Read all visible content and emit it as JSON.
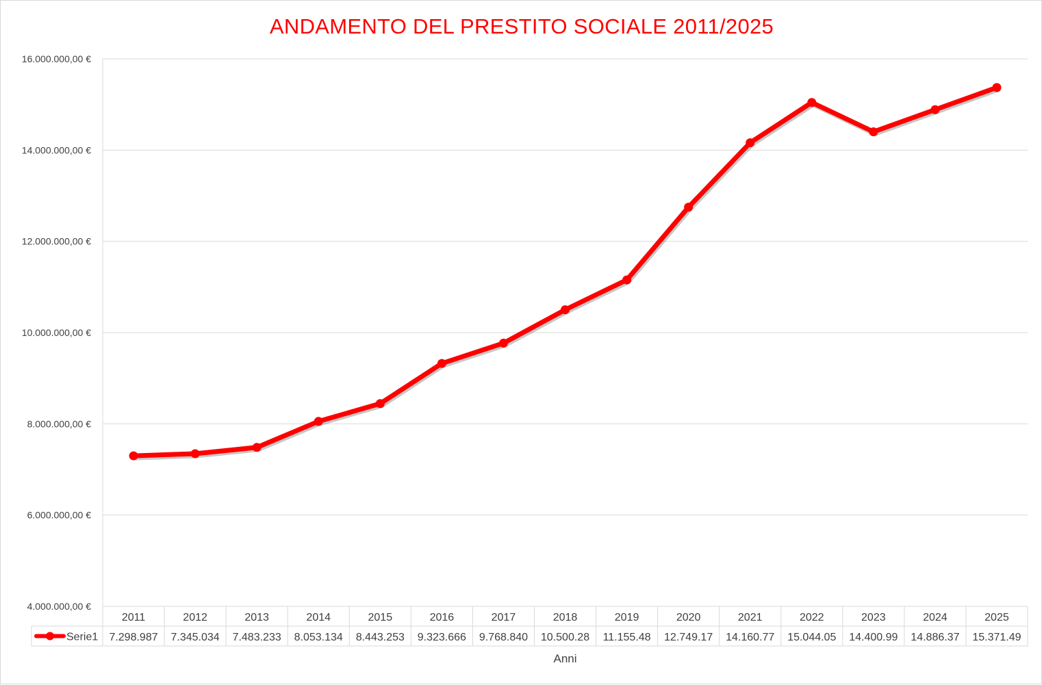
{
  "chart_data": {
    "type": "line",
    "title": "ANDAMENTO DEL PRESTITO SOCIALE 2011/2025",
    "xlabel": "Anni",
    "ylabel": "",
    "categories": [
      "2011",
      "2012",
      "2013",
      "2014",
      "2015",
      "2016",
      "2017",
      "2018",
      "2019",
      "2020",
      "2021",
      "2022",
      "2023",
      "2024",
      "2025"
    ],
    "series": [
      {
        "name": "Serie1",
        "values": [
          7298987,
          7345034,
          7483233,
          8053134,
          8443253,
          9323666,
          9768840,
          10500280,
          11155480,
          12749170,
          14160770,
          15044050,
          14400990,
          14886370,
          15371490
        ],
        "table_labels": [
          "7.298.987",
          "7.345.034",
          "7.483.233",
          "8.053.134",
          "8.443.253",
          "9.323.666",
          "9.768.840",
          "10.500.28",
          "11.155.48",
          "12.749.17",
          "14.160.77",
          "15.044.05",
          "14.400.99",
          "14.886.37",
          "15.371.49"
        ],
        "color": "#ff0000"
      }
    ],
    "ylim": [
      4000000,
      16000000
    ],
    "yticks": [
      4000000,
      6000000,
      8000000,
      10000000,
      12000000,
      14000000,
      16000000
    ],
    "ytick_labels": [
      "4.000.000,00 €",
      "6.000.000,00 €",
      "8.000.000,00 €",
      "10.000.000,00 €",
      "12.000.000,00 €",
      "14.000.000,00 €",
      "16.000.000,00 €"
    ],
    "grid": true,
    "legend": "data-table"
  },
  "colors": {
    "title": "#ff0000",
    "series": "#ff0000",
    "grid": "#d9d9d9",
    "text": "#404040"
  }
}
